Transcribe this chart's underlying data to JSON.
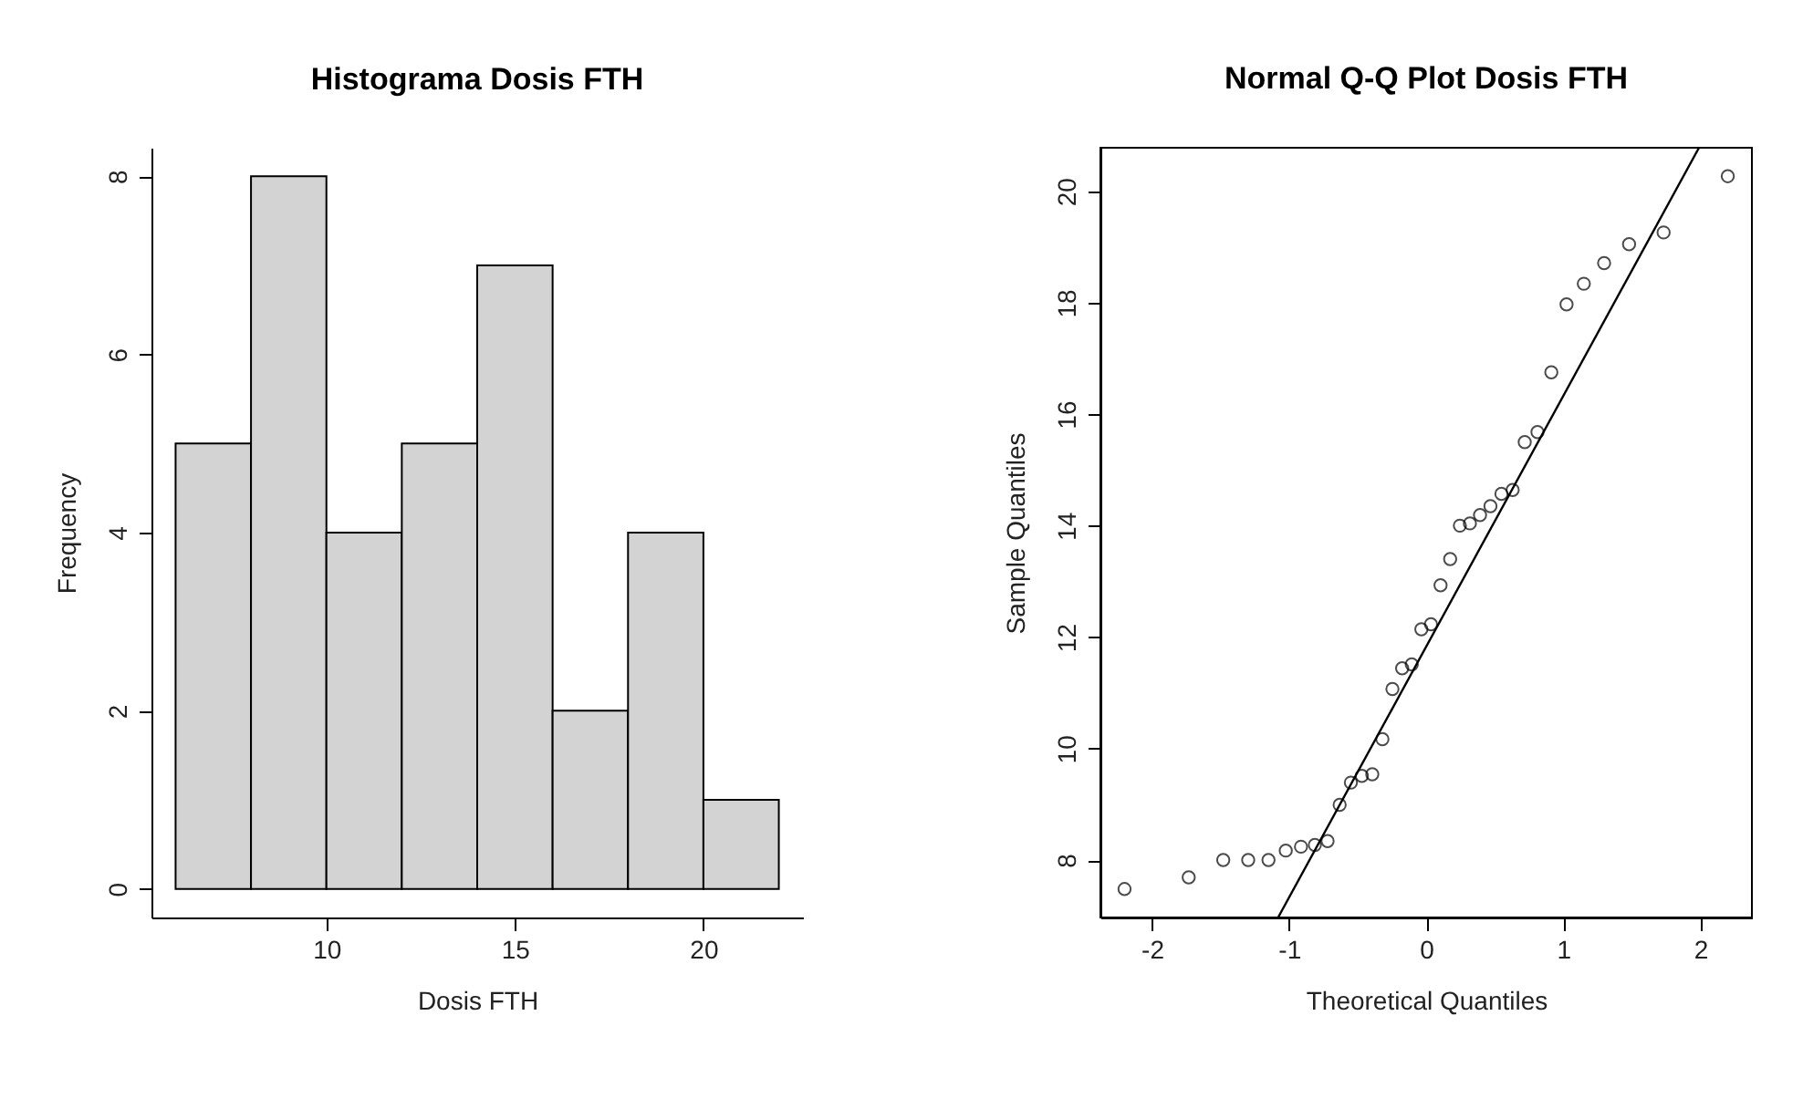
{
  "chart_data": [
    {
      "type": "histogram",
      "title": "Histograma Dosis FTH",
      "xlabel": "Dosis FTH",
      "ylabel": "Frequency",
      "bins": [
        6,
        8,
        10,
        12,
        14,
        16,
        18,
        20,
        22
      ],
      "values": [
        5,
        8,
        4,
        5,
        7,
        2,
        4,
        1
      ],
      "color": "#d3d3d3",
      "xlim": [
        5.36,
        22.64
      ],
      "xticks": [
        10,
        15,
        20
      ],
      "ylim": [
        -0.32,
        8.32
      ],
      "yticks": [
        0,
        2,
        4,
        6,
        8
      ],
      "grid": false
    },
    {
      "type": "scatter",
      "title": "Normal Q-Q Plot Dosis FTH",
      "xlabel": "Theoretical Quantiles",
      "ylabel": "Sample Quantiles",
      "x": [
        -2.2,
        -1.732,
        -1.48,
        -1.298,
        -1.15,
        -1.024,
        -0.913,
        -0.812,
        -0.719,
        -0.631,
        -0.549,
        -0.469,
        -0.393,
        -0.319,
        -0.246,
        -0.175,
        -0.105,
        -0.035,
        0.035,
        0.105,
        0.175,
        0.246,
        0.319,
        0.393,
        0.469,
        0.549,
        0.631,
        0.719,
        0.812,
        0.913,
        1.024,
        1.15,
        1.298,
        1.48,
        1.732,
        2.2
      ],
      "series": [
        {
          "type": "scatter",
          "color": "#000000",
          "marker": "circle",
          "values": [
            7.48,
            7.69,
            8.0,
            8.0,
            8.0,
            8.17,
            8.24,
            8.27,
            8.34,
            8.99,
            9.39,
            9.51,
            9.54,
            10.17,
            11.07,
            11.44,
            11.51,
            12.14,
            12.23,
            12.93,
            13.4,
            14.0,
            14.04,
            14.19,
            14.35,
            14.57,
            14.64,
            15.5,
            15.68,
            16.75,
            17.97,
            18.34,
            18.71,
            19.05,
            19.26,
            20.27
          ]
        },
        {
          "type": "line",
          "color": "#000000",
          "line_style": "solid",
          "x": [
            -1.08,
            1.99
          ],
          "values": [
            6.97,
            20.78
          ]
        }
      ],
      "xlim": [
        -2.376,
        2.376
      ],
      "xticks": [
        -2,
        -1,
        0,
        1,
        2
      ],
      "ylim": [
        6.97,
        20.78
      ],
      "yticks": [
        8,
        10,
        12,
        14,
        16,
        18,
        20
      ],
      "grid": false
    }
  ]
}
